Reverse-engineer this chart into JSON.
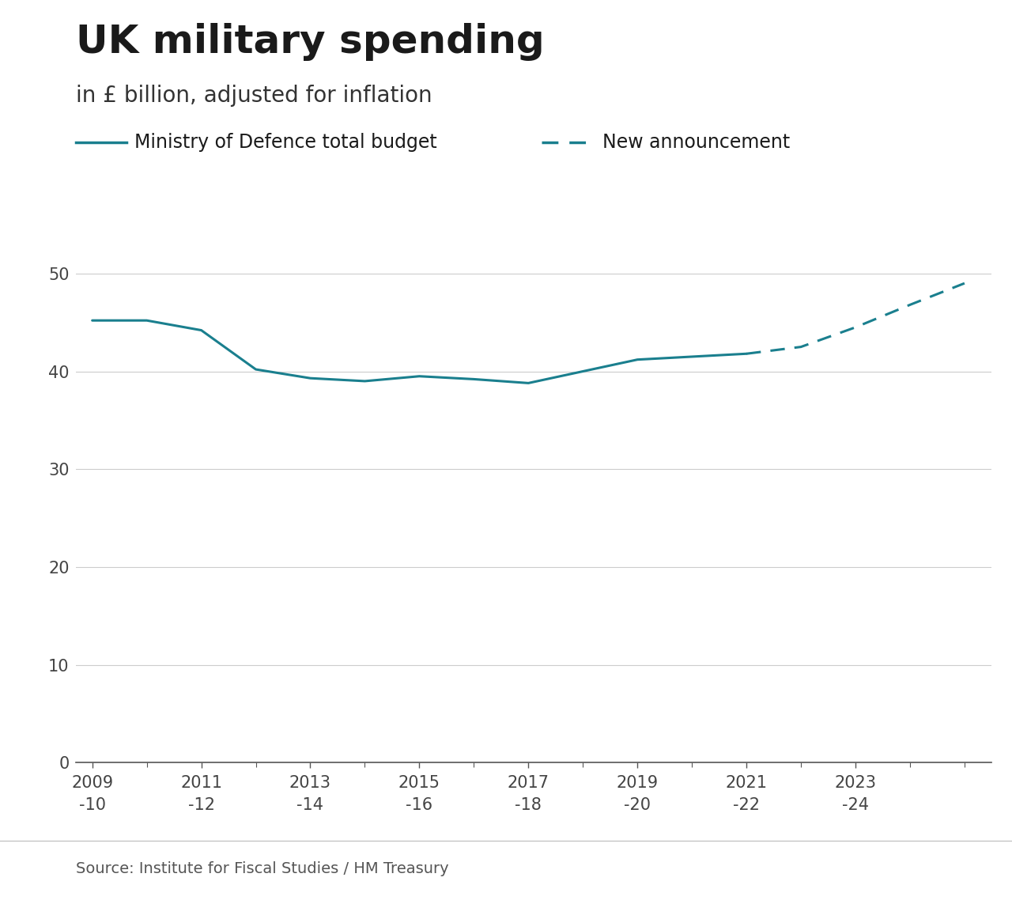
{
  "title": "UK military spending",
  "subtitle": "in £ billion, adjusted for inflation",
  "line_color": "#1a7f8e",
  "background_color": "#ffffff",
  "solid_x": [
    2009,
    2010,
    2011,
    2012,
    2013,
    2014,
    2015,
    2016,
    2017,
    2018,
    2019,
    2020,
    2021
  ],
  "solid_y": [
    45.2,
    45.2,
    44.2,
    40.2,
    39.3,
    39.0,
    39.5,
    39.2,
    38.8,
    40.0,
    41.2,
    41.5,
    41.8
  ],
  "dashed_x": [
    2021,
    2022,
    2023,
    2024,
    2025
  ],
  "dashed_y": [
    41.8,
    42.5,
    44.5,
    46.8,
    49.0
  ],
  "legend_solid_label": "Ministry of Defence total budget",
  "legend_dashed_label": "New announcement",
  "source_text": "Source: Institute for Fiscal Studies / HM Treasury",
  "yticks": [
    0,
    10,
    20,
    30,
    40,
    50
  ],
  "xtick_labels_top": [
    "2009",
    "2011",
    "2013",
    "2015",
    "2017",
    "2019",
    "2021",
    "2023"
  ],
  "xtick_labels_bottom": [
    "-10",
    "-12",
    "-14",
    "-16",
    "-18",
    "-20",
    "-22",
    "-24"
  ],
  "xtick_positions": [
    2009,
    2011,
    2013,
    2015,
    2017,
    2019,
    2021,
    2023
  ],
  "xmin": 2008.7,
  "xmax": 2025.5,
  "ymin": 0,
  "ymax": 54,
  "title_fontsize": 36,
  "subtitle_fontsize": 20,
  "legend_fontsize": 17,
  "tick_fontsize": 15,
  "source_fontsize": 14
}
